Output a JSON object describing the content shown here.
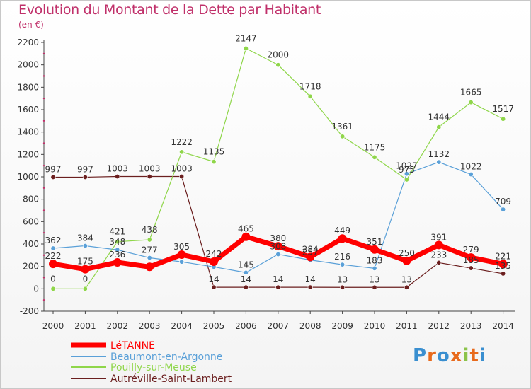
{
  "chart_data": {
    "type": "line",
    "title": "Evolution du Montant de la Dette par Habitant",
    "subtitle": "(en €)",
    "x": [
      "2000",
      "2001",
      "2002",
      "2003",
      "2004",
      "2005",
      "2006",
      "2007",
      "2008",
      "2009",
      "2010",
      "2011",
      "2012",
      "2013",
      "2014"
    ],
    "ylim": [
      -200,
      2200
    ],
    "yticks": [
      -200,
      0,
      200,
      400,
      600,
      800,
      1000,
      1200,
      1400,
      1600,
      1800,
      2000,
      2200
    ],
    "grid": false,
    "legend_position": "bottom-left",
    "series": [
      {
        "name": "LéTANNE",
        "color": "#ff0000",
        "values": [
          222,
          175,
          236,
          196,
          305,
          242,
          465,
          380,
          284,
          449,
          351,
          250,
          391,
          279,
          221
        ]
      },
      {
        "name": "Beaumont-en-Argonne",
        "color": "#5aa0d8",
        "values": [
          362,
          384,
          348,
          277,
          241,
          196,
          145,
          308,
          257,
          216,
          183,
          1027,
          1132,
          1022,
          709
        ]
      },
      {
        "name": "Pouilly-sur-Meuse",
        "color": "#8fd64a",
        "values": [
          0,
          0,
          421,
          438,
          1222,
          1135,
          2147,
          2000,
          1718,
          1361,
          1175,
          975,
          1444,
          1665,
          1517
        ]
      },
      {
        "name": "Autréville-Saint-Lambert",
        "color": "#6b1f1f",
        "values": [
          997,
          997,
          1003,
          1003,
          1003,
          14,
          14,
          14,
          14,
          13,
          13,
          13,
          233,
          185,
          135
        ]
      }
    ],
    "data_labels": {
      "LéTANNE": [
        "222",
        "175",
        "236",
        "",
        "305",
        "242",
        "465",
        "380",
        "284",
        "449",
        "351",
        "250",
        "391",
        "279",
        "221"
      ],
      "Beaumont-en-Argonne": [
        "362",
        "384",
        "348",
        "277",
        "",
        "",
        "145",
        "308",
        "257",
        "216",
        "183",
        "1027",
        "1132",
        "1022",
        "709"
      ],
      "Pouilly-sur-Meuse": [
        "0",
        "0",
        "421",
        "438",
        "1222",
        "1135",
        "2147",
        "2000",
        "1718",
        "1361",
        "1175",
        "975",
        "1444",
        "1665",
        "1517"
      ],
      "Autréville-Saint-Lambert": [
        "997",
        "997",
        "1003",
        "1003",
        "1003",
        "14",
        "14",
        "14",
        "14",
        "13",
        "13",
        "13",
        "233",
        "185",
        "135"
      ]
    }
  },
  "logo": {
    "text": "Proxiti",
    "colors": [
      "#3a8fd0",
      "#e86a1c",
      "#3a8fd0",
      "#e86a1c",
      "#8bc34a",
      "#e86a1c",
      "#3a8fd0"
    ]
  }
}
